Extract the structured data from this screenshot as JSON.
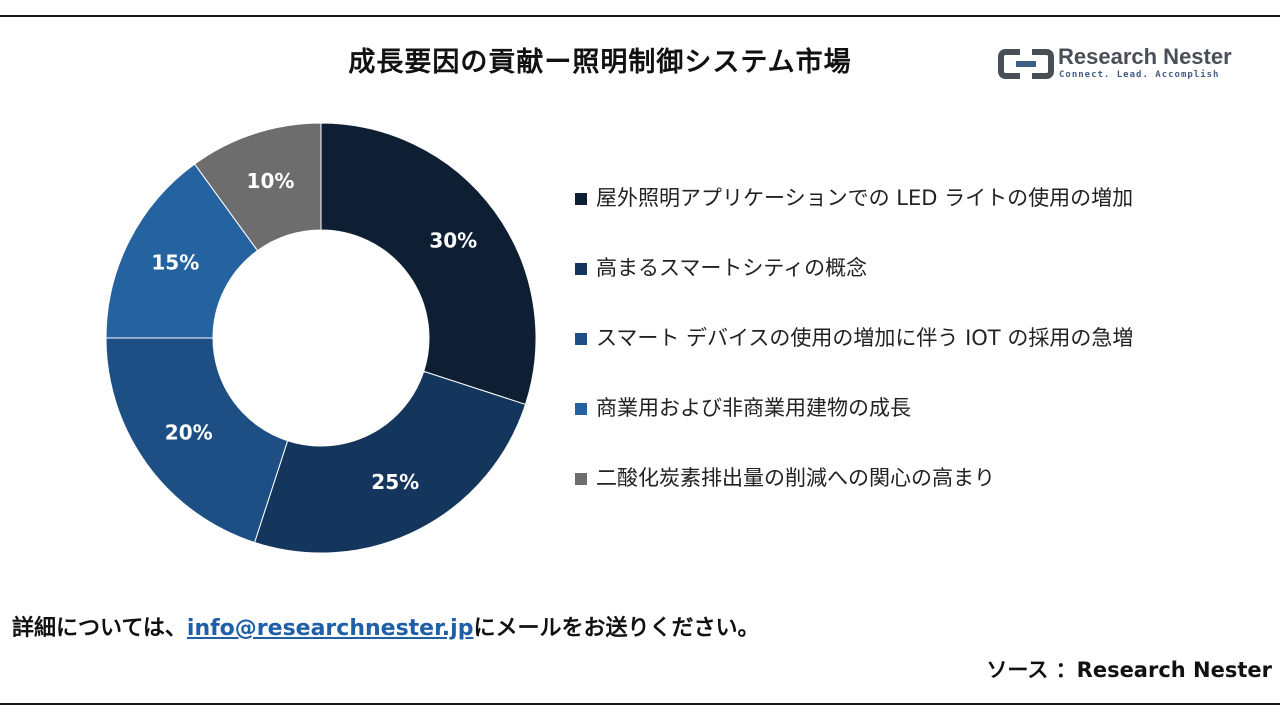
{
  "header": {
    "title": "成長要因の貢献ー照明制御システム市場"
  },
  "logo": {
    "brand": "Research Nester",
    "tagline": "Connect. Lead. Accomplish"
  },
  "chart_data": {
    "type": "pie",
    "donut": true,
    "title": "成長要因の貢献ー照明制御システム市場",
    "legend_position": "right",
    "series": [
      {
        "name": "屋外照明アプリケーションでの LED ライトの使用の増加",
        "value": 30,
        "label": "30%",
        "color": "#0f1f33"
      },
      {
        "name": "高まるスマートシティの概念",
        "value": 25,
        "label": "25%",
        "color": "#15365c"
      },
      {
        "name": "スマート デバイスの使用の増加に伴う IOT の採用の急増",
        "value": 20,
        "label": "20%",
        "color": "#1d4f85"
      },
      {
        "name": "商業用および非商業用建物の成長",
        "value": 15,
        "label": "15%",
        "color": "#2462a0"
      },
      {
        "name": "二酸化炭素排出量の削減への関心の高まり",
        "value": 10,
        "label": "10%",
        "color": "#6d6d6d"
      }
    ]
  },
  "footer": {
    "contact_prefix": "詳細については、",
    "contact_email": "info@researchnester.jp",
    "contact_suffix": "にメールをお送りください。",
    "source": "ソース ：Research Nester"
  }
}
